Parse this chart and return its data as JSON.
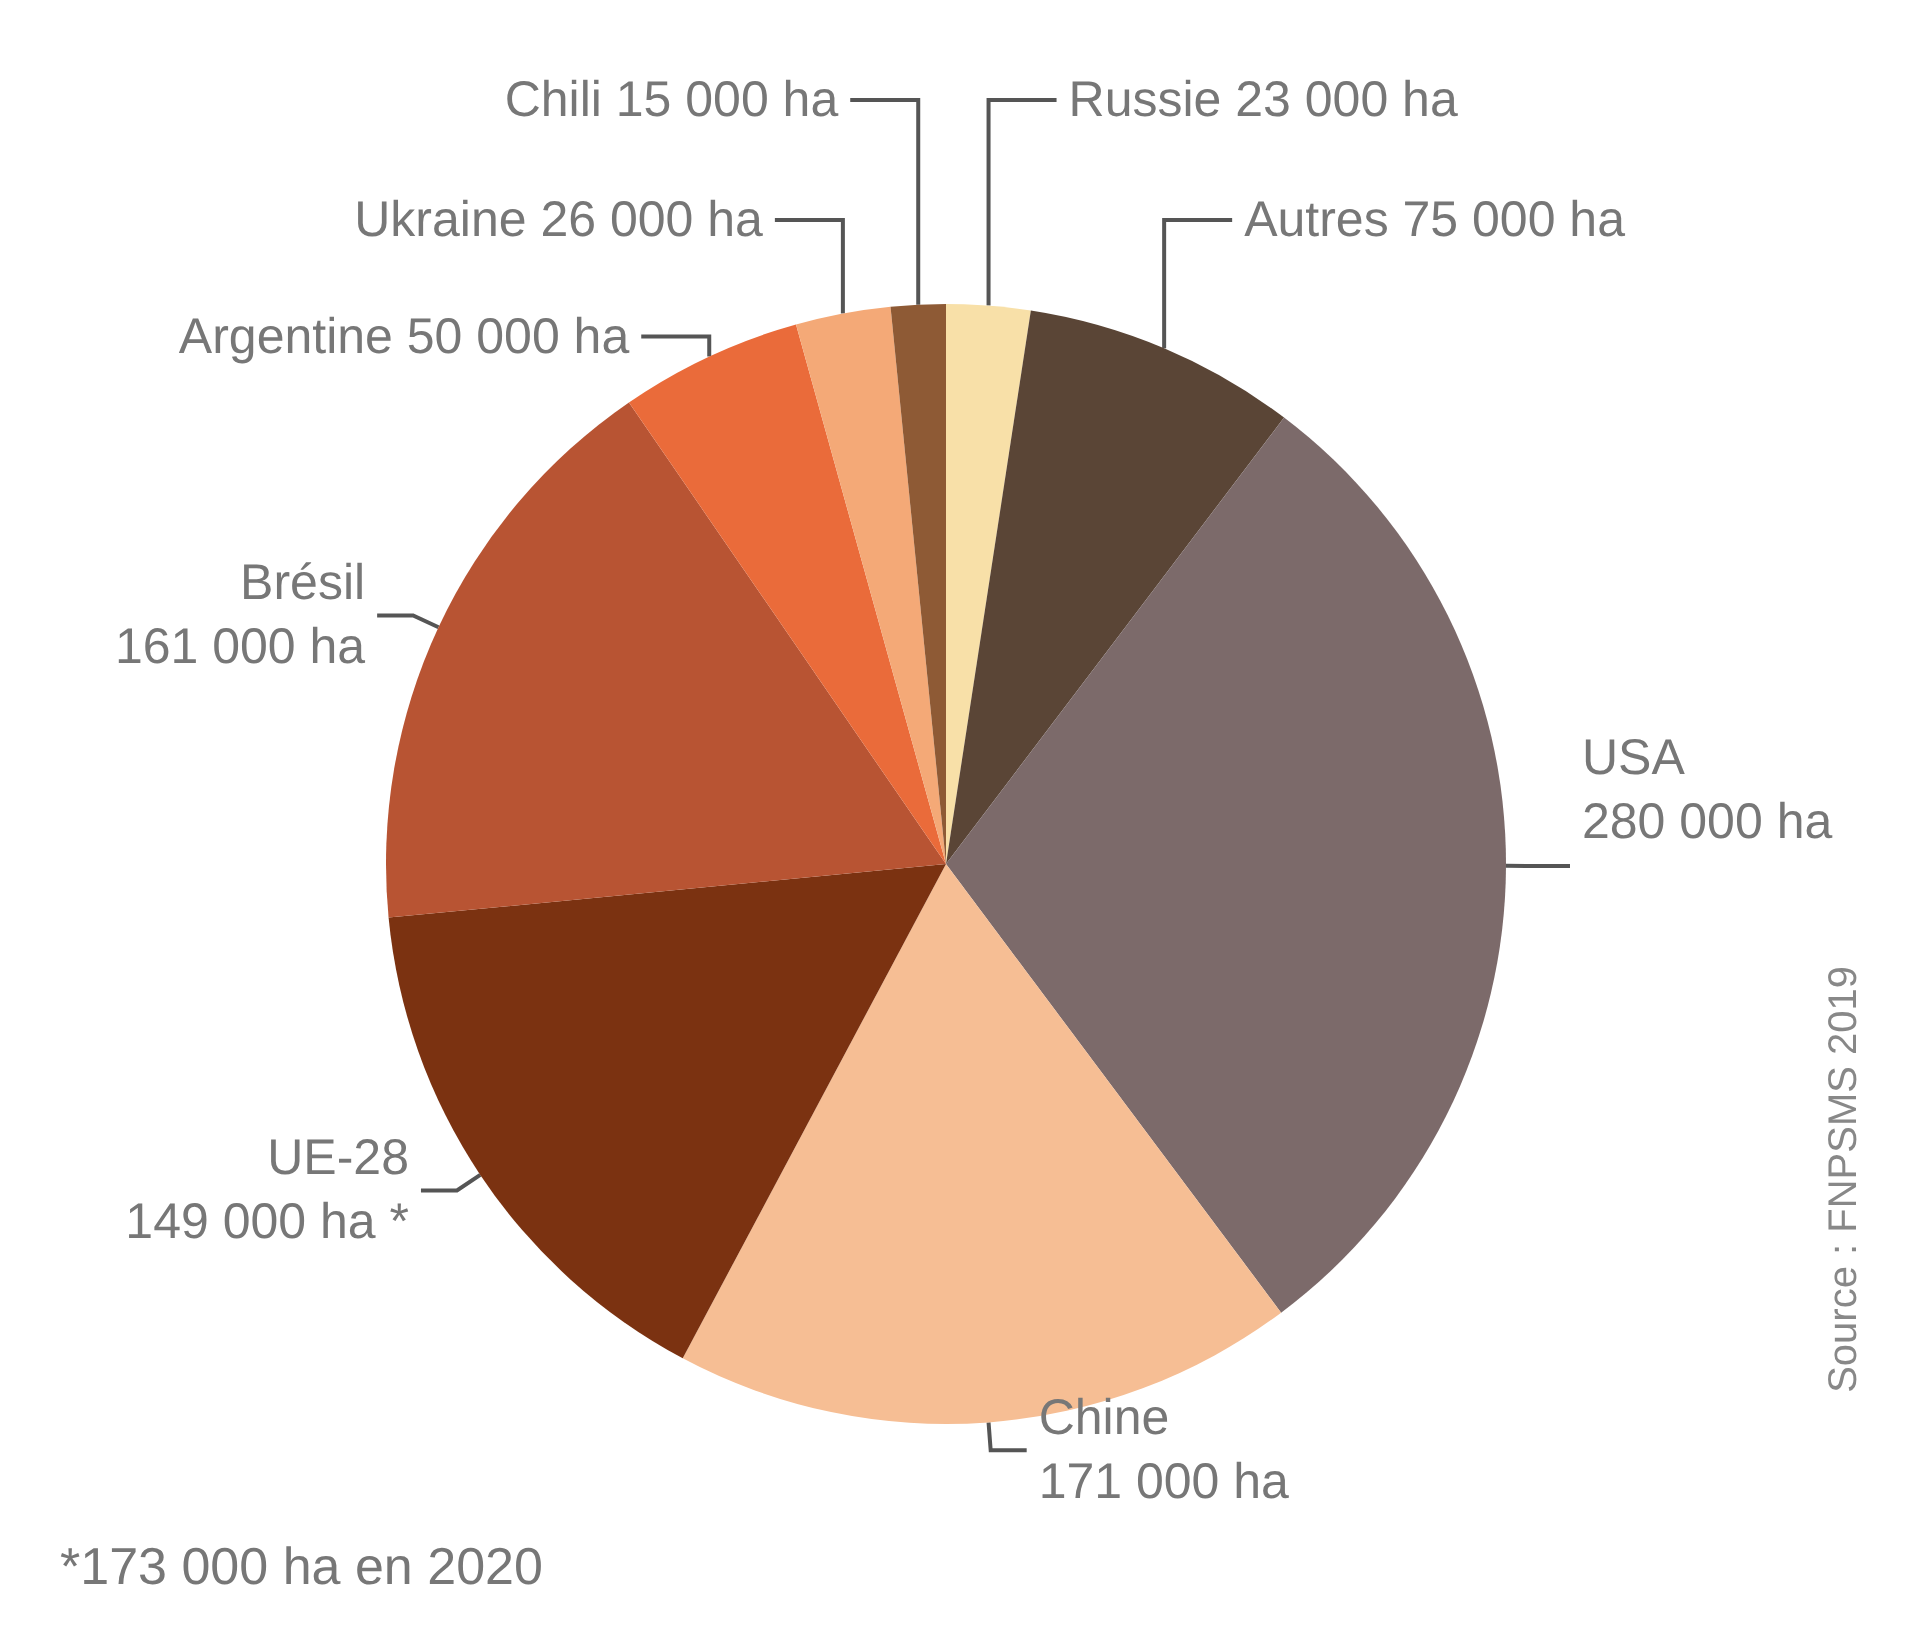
{
  "chart_data": {
    "type": "pie",
    "categories": [
      "Russie",
      "Autres",
      "USA",
      "Chine",
      "UE-28",
      "Brésil",
      "Argentine",
      "Ukraine",
      "Chili"
    ],
    "values": [
      23000,
      75000,
      280000,
      171000,
      149000,
      161000,
      50000,
      26000,
      15000
    ],
    "value_labels": [
      "23 000 ha",
      "75 000 ha",
      "280 000 ha",
      "171 000 ha",
      "149 000 ha *",
      "161 000 ha",
      "50 000 ha",
      "26 000 ha",
      "15 000 ha"
    ],
    "colors": [
      "#f8e0a8",
      "#5a4536",
      "#7c6a6a",
      "#f6be94",
      "#7b3211",
      "#b85433",
      "#ea6b3a",
      "#f4a977",
      "#8e5a35"
    ],
    "annotations": [
      "*173 000 ha en 2020",
      "Source : FNPSMS 2019"
    ],
    "legend": false
  }
}
